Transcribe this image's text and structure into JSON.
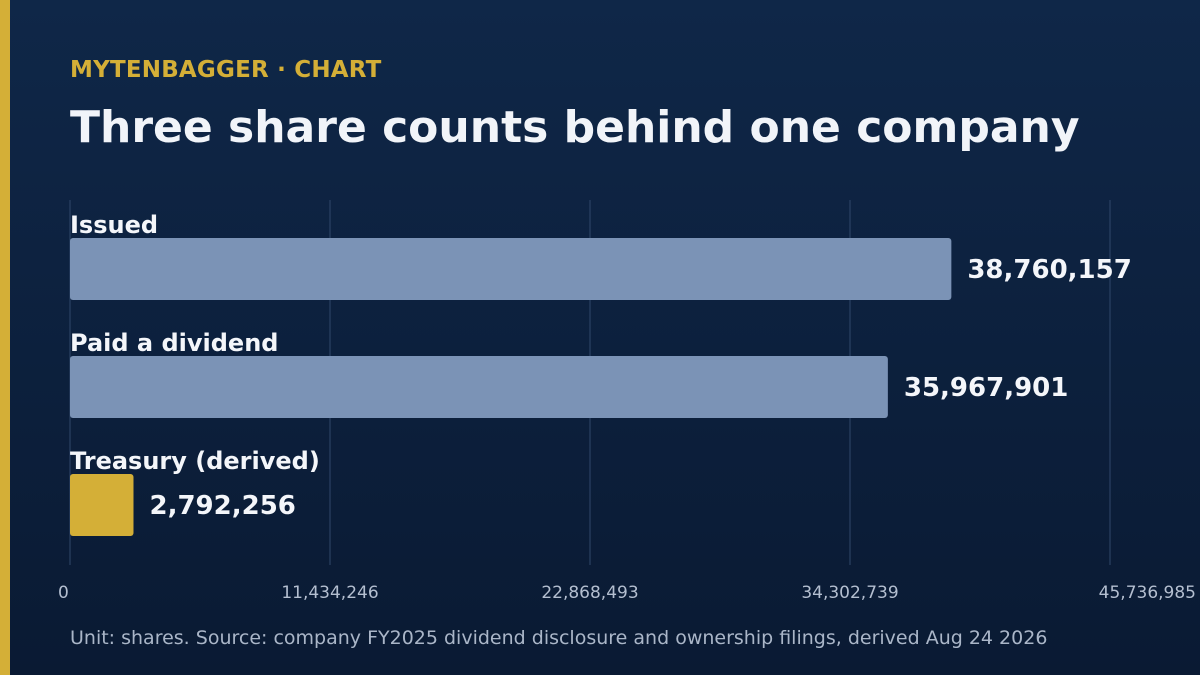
{
  "header": {
    "kicker": "MYTENBAGGER · CHART",
    "title": "Three share counts behind one company"
  },
  "footer": {
    "note": "Unit: shares. Source: company FY2025 dividend disclosure and ownership filings, derived Aug 24 2026"
  },
  "colors": {
    "accent": "#d4af37",
    "bar_default": "#7b93b6",
    "bar_highlight": "#d4af37",
    "background": "#0b1e3a"
  },
  "chart_data": {
    "type": "bar",
    "orientation": "horizontal",
    "title": "Three share counts behind one company",
    "categories": [
      "Issued",
      "Paid a dividend",
      "Treasury (derived)"
    ],
    "values": [
      38760157,
      35967901,
      2792256
    ],
    "value_labels": [
      "38,760,157",
      "35,967,901",
      "2,792,256"
    ],
    "highlight": [
      false,
      false,
      true
    ],
    "xlim": [
      0,
      45736985
    ],
    "x_ticks": [
      0,
      11434246,
      22868493,
      34302739,
      45736985
    ],
    "x_tick_labels": [
      "0",
      "11,434,246",
      "22,868,493",
      "34,302,739",
      "45,736,985"
    ],
    "grid": true,
    "legend": "none"
  }
}
